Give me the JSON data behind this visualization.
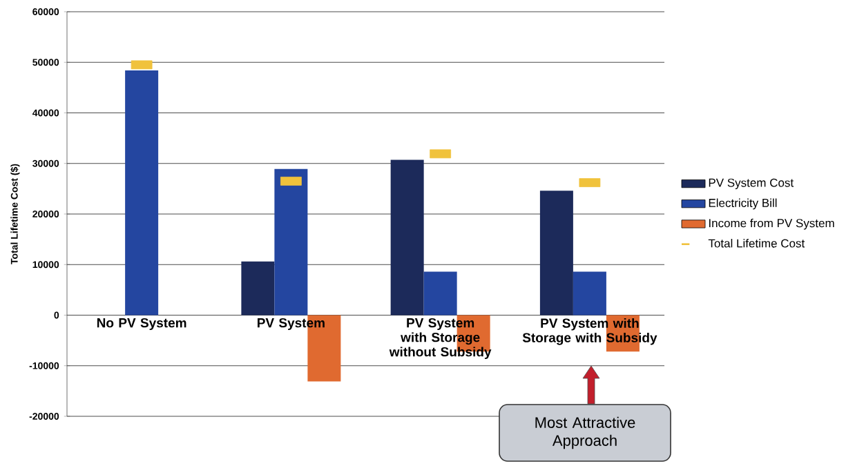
{
  "chart_data": {
    "type": "bar",
    "ylabel": "Total Lifetime Cost ($)",
    "categories": [
      "No PV System",
      "PV System",
      "PV System with Storage without Subsidy",
      "PV System with Storage with Subsidy"
    ],
    "series": [
      {
        "name": "PV System Cost",
        "color": "#1c2a5a",
        "values": [
          null,
          10600,
          30700,
          24600
        ]
      },
      {
        "name": "Electricity Bill",
        "color": "#2446a0",
        "values": [
          48400,
          28900,
          8600,
          8600
        ]
      },
      {
        "name": "Income from PV System",
        "color": "#e06a30",
        "values": [
          null,
          -13100,
          -7200,
          -7200
        ]
      },
      {
        "name": "Total Lifetime Cost",
        "type": "scatter",
        "color": "#f0c23c",
        "x": [
          "No PV System",
          "PV System",
          "PV System with Storage without Subsidy",
          "PV System with Storage with Subsidy"
        ],
        "values": [
          49500,
          26500,
          31900,
          26200
        ]
      }
    ],
    "ylim": [
      -20000,
      60000
    ],
    "yticks": [
      -20000,
      -10000,
      0,
      10000,
      20000,
      30000,
      40000,
      50000,
      60000
    ],
    "grid": "y",
    "legend": "right",
    "annotations": [
      "Most Attractive Approach"
    ]
  }
}
